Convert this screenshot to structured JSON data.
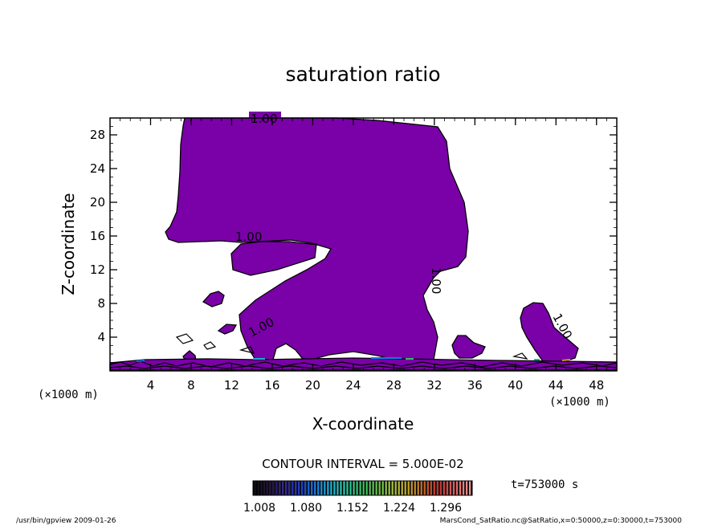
{
  "chart_data": {
    "type": "contour",
    "title": "saturation ratio",
    "xlabel": "X-coordinate",
    "ylabel": "Z-coordinate",
    "x_unit": "(×1000 m)",
    "y_unit": "(×1000 m)",
    "xlim": [
      0,
      50
    ],
    "ylim": [
      0,
      30
    ],
    "x_ticks": [
      4,
      8,
      12,
      16,
      20,
      24,
      28,
      32,
      36,
      40,
      44,
      48
    ],
    "y_ticks": [
      4,
      8,
      12,
      16,
      20,
      24,
      28
    ],
    "contour_labels": [
      "1.00",
      "1.00",
      "1.00",
      "1.00",
      "1.00"
    ],
    "contour_interval": "CONTOUR INTERVAL = 5.000E-02",
    "time_label": "t=753000 s",
    "colorbar": {
      "tick_labels": [
        "1.008",
        "1.080",
        "1.152",
        "1.224",
        "1.296"
      ],
      "colors": [
        "#000000",
        "#1a0a3c",
        "#2a1a8c",
        "#1030c0",
        "#1078e0",
        "#10b0d0",
        "#20c8a0",
        "#30c060",
        "#60c040",
        "#a0c030",
        "#c0a020",
        "#c06020",
        "#c03030",
        "#e06060",
        "#ff9090"
      ]
    },
    "fill_color": "#7a00a8",
    "footer_left": "/usr/bin/gpview   2009-01-26",
    "footer_right": "MarsCond_SatRatio.nc@SatRatio,x=0:50000,z=0:30000,t=753000"
  }
}
